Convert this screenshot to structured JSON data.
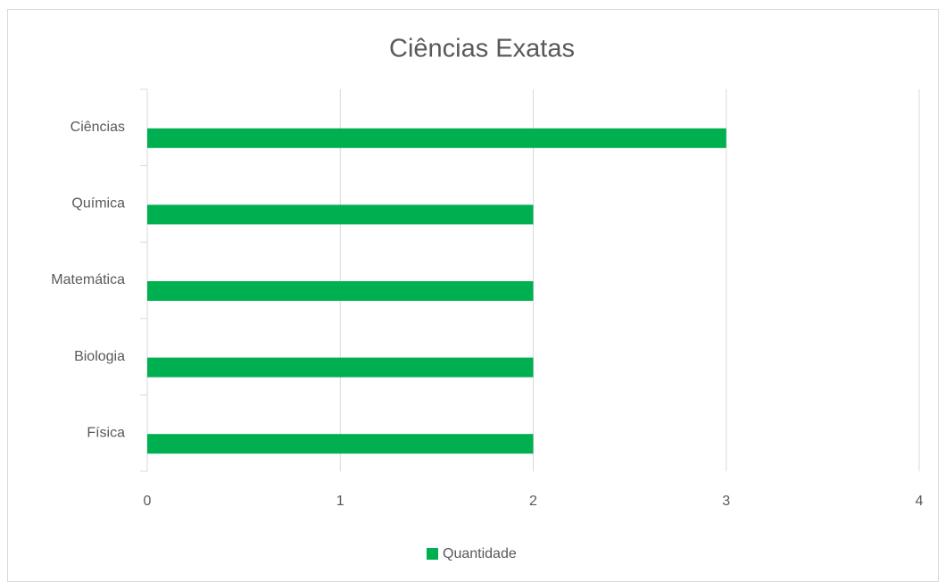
{
  "chart_data": {
    "type": "barh",
    "title": "Ciências Exatas",
    "categories": [
      "Física",
      "Biologia",
      "Matemática",
      "Química",
      "Ciências"
    ],
    "series": [
      {
        "name": "Quantidade",
        "color": "#00b050",
        "values": [
          2,
          2,
          2,
          2,
          3
        ]
      }
    ],
    "xlim": [
      0,
      4
    ],
    "xticks": [
      0,
      1,
      2,
      3,
      4
    ],
    "grid": true,
    "legend": "bottom"
  }
}
